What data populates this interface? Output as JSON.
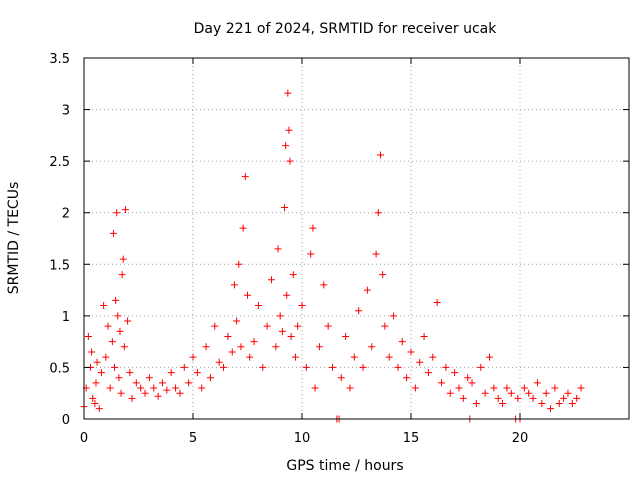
{
  "chart_data": {
    "type": "scatter",
    "title": "Day 221 of 2024, SRMTID for receiver ucak",
    "xlabel": "GPS time / hours",
    "ylabel": "SRMTID / TECUs",
    "xlim": [
      0,
      25
    ],
    "ylim": [
      0,
      3.5
    ],
    "xticks": [
      0,
      5,
      10,
      15,
      20
    ],
    "xtick_labels": [
      "0",
      "5",
      "10",
      "15",
      "20"
    ],
    "yticks": [
      0,
      0.5,
      1,
      1.5,
      2,
      2.5,
      3,
      3.5
    ],
    "ytick_labels": [
      "0",
      "0.5",
      "1",
      "1.5",
      "2",
      "2.5",
      "3",
      "3.5"
    ],
    "grid": true,
    "marker": "plus",
    "color": "#ff0000",
    "series": [
      {
        "name": "SRMTID",
        "x": [
          0.0,
          0.1,
          0.2,
          0.3,
          0.35,
          0.4,
          0.5,
          0.55,
          0.6,
          0.7,
          0.8,
          0.9,
          1.0,
          1.1,
          1.2,
          1.3,
          1.35,
          1.4,
          1.45,
          1.5,
          1.55,
          1.6,
          1.65,
          1.7,
          1.75,
          1.8,
          1.85,
          1.9,
          2.0,
          2.1,
          2.2,
          2.4,
          2.6,
          2.8,
          3.0,
          3.2,
          3.4,
          3.6,
          3.8,
          4.0,
          4.2,
          4.4,
          4.6,
          4.8,
          5.0,
          5.2,
          5.4,
          5.6,
          5.8,
          6.0,
          6.2,
          6.4,
          6.6,
          6.8,
          6.9,
          7.0,
          7.1,
          7.2,
          7.3,
          7.4,
          7.5,
          7.6,
          7.8,
          8.0,
          8.2,
          8.4,
          8.6,
          8.8,
          8.9,
          9.0,
          9.1,
          9.2,
          9.25,
          9.3,
          9.35,
          9.4,
          9.45,
          9.5,
          9.6,
          9.7,
          9.8,
          10.0,
          10.2,
          10.4,
          10.5,
          10.6,
          10.8,
          11.0,
          11.2,
          11.4,
          11.6,
          11.7,
          11.8,
          12.0,
          12.2,
          12.4,
          12.6,
          12.8,
          13.0,
          13.2,
          13.4,
          13.5,
          13.6,
          13.7,
          13.8,
          14.0,
          14.2,
          14.4,
          14.6,
          14.8,
          15.0,
          15.2,
          15.4,
          15.6,
          15.8,
          16.0,
          16.2,
          16.4,
          16.6,
          16.8,
          17.0,
          17.2,
          17.4,
          17.6,
          17.7,
          17.8,
          18.0,
          18.2,
          18.4,
          18.6,
          18.8,
          19.0,
          19.2,
          19.4,
          19.6,
          19.8,
          19.9,
          20.0,
          20.2,
          20.4,
          20.6,
          20.8,
          21.0,
          21.2,
          21.4,
          21.6,
          21.8,
          22.0,
          22.2,
          22.4,
          22.6,
          22.8
        ],
        "y": [
          0.12,
          0.3,
          0.8,
          0.5,
          0.65,
          0.2,
          0.15,
          0.35,
          0.55,
          0.1,
          0.45,
          1.1,
          0.6,
          0.9,
          0.3,
          0.75,
          1.8,
          0.5,
          1.15,
          2.0,
          1.0,
          0.4,
          0.85,
          0.25,
          1.4,
          1.55,
          0.7,
          2.03,
          0.95,
          0.45,
          0.2,
          0.35,
          0.3,
          0.25,
          0.4,
          0.3,
          0.22,
          0.35,
          0.28,
          0.45,
          0.3,
          0.25,
          0.5,
          0.35,
          0.6,
          0.45,
          0.3,
          0.7,
          0.4,
          0.9,
          0.55,
          0.5,
          0.8,
          0.65,
          1.3,
          0.95,
          1.5,
          0.7,
          1.85,
          2.35,
          1.2,
          0.6,
          0.75,
          1.1,
          0.5,
          0.9,
          1.35,
          0.7,
          1.65,
          1.0,
          0.85,
          2.05,
          2.65,
          1.2,
          3.16,
          2.8,
          2.5,
          0.8,
          1.4,
          0.6,
          0.9,
          1.1,
          0.5,
          1.6,
          1.85,
          0.3,
          0.7,
          1.3,
          0.9,
          0.5,
          0.0,
          0.0,
          0.4,
          0.8,
          0.3,
          0.6,
          1.05,
          0.5,
          1.25,
          0.7,
          1.6,
          2.0,
          2.56,
          1.4,
          0.9,
          0.6,
          1.0,
          0.5,
          0.75,
          0.4,
          0.65,
          0.3,
          0.55,
          0.8,
          0.45,
          0.6,
          1.13,
          0.35,
          0.5,
          0.25,
          0.45,
          0.3,
          0.2,
          0.4,
          0.0,
          0.35,
          0.15,
          0.5,
          0.25,
          0.6,
          0.3,
          0.2,
          0.15,
          0.3,
          0.25,
          0.0,
          0.2,
          0.0,
          0.3,
          0.25,
          0.2,
          0.35,
          0.15,
          0.25,
          0.1,
          0.3,
          0.15,
          0.2,
          0.25,
          0.15,
          0.2,
          0.3
        ]
      }
    ]
  }
}
